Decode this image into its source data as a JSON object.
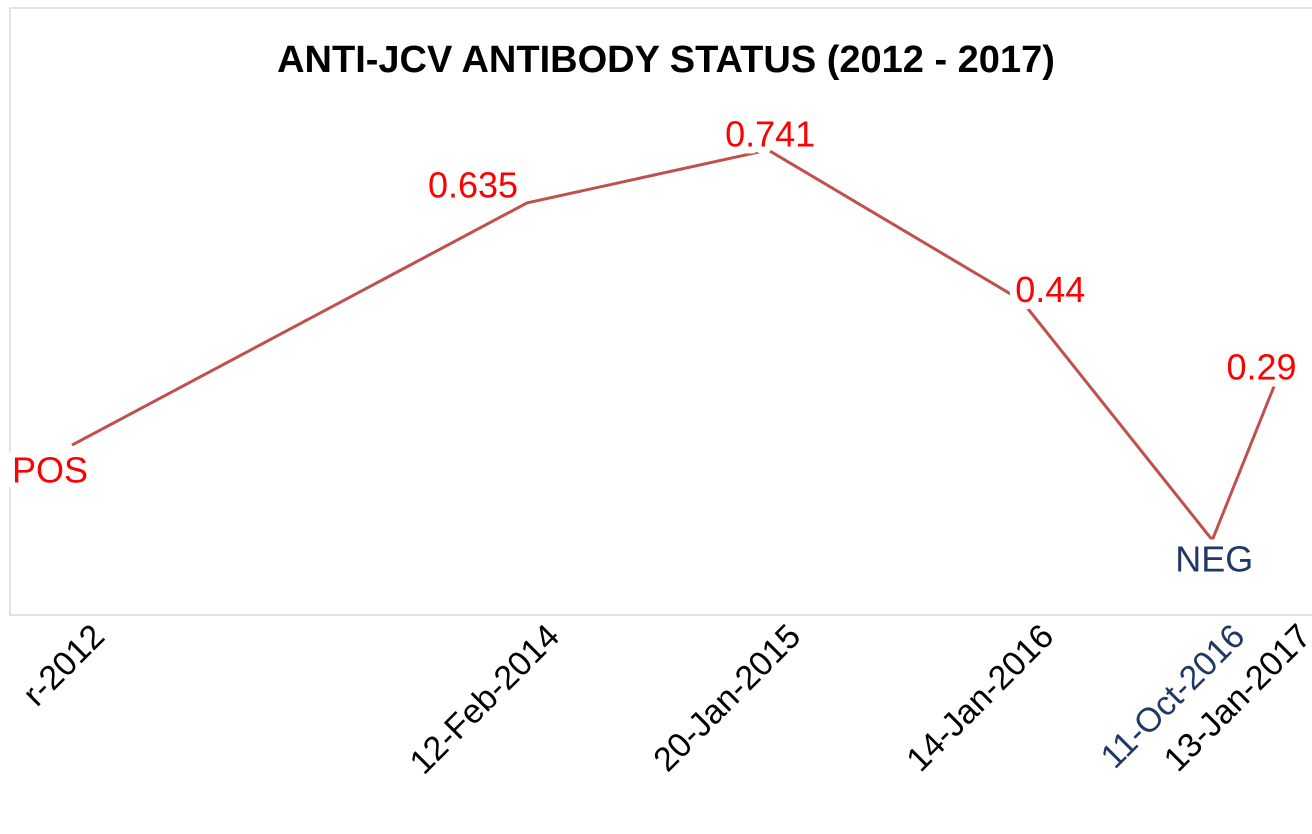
{
  "chart_data": {
    "type": "line",
    "title": "ANTI-JCV ANTIBODY STATUS (2012 - 2017)",
    "categories": [
      "r-2012",
      "12-Feb-2014",
      "20-Jan-2015",
      "14-Jan-2016",
      "11-Oct-2016",
      "13-Jan-2017"
    ],
    "category_colors": [
      "#000000",
      "#000000",
      "#000000",
      "#000000",
      "#1f3864",
      "#000000"
    ],
    "series": [
      {
        "color": "#c0504d",
        "values": [
          0.15,
          0.635,
          0.741,
          0.44,
          -0.04,
          0.29
        ],
        "value_labels": [
          "POS",
          "0.635",
          "0.741",
          "0.44",
          "NEG",
          "0.29"
        ],
        "value_label_colors": [
          "#ff0000",
          "#ff0000",
          "#ff0000",
          "#ff0000",
          "#1f3864",
          "#ff0000"
        ]
      }
    ]
  }
}
